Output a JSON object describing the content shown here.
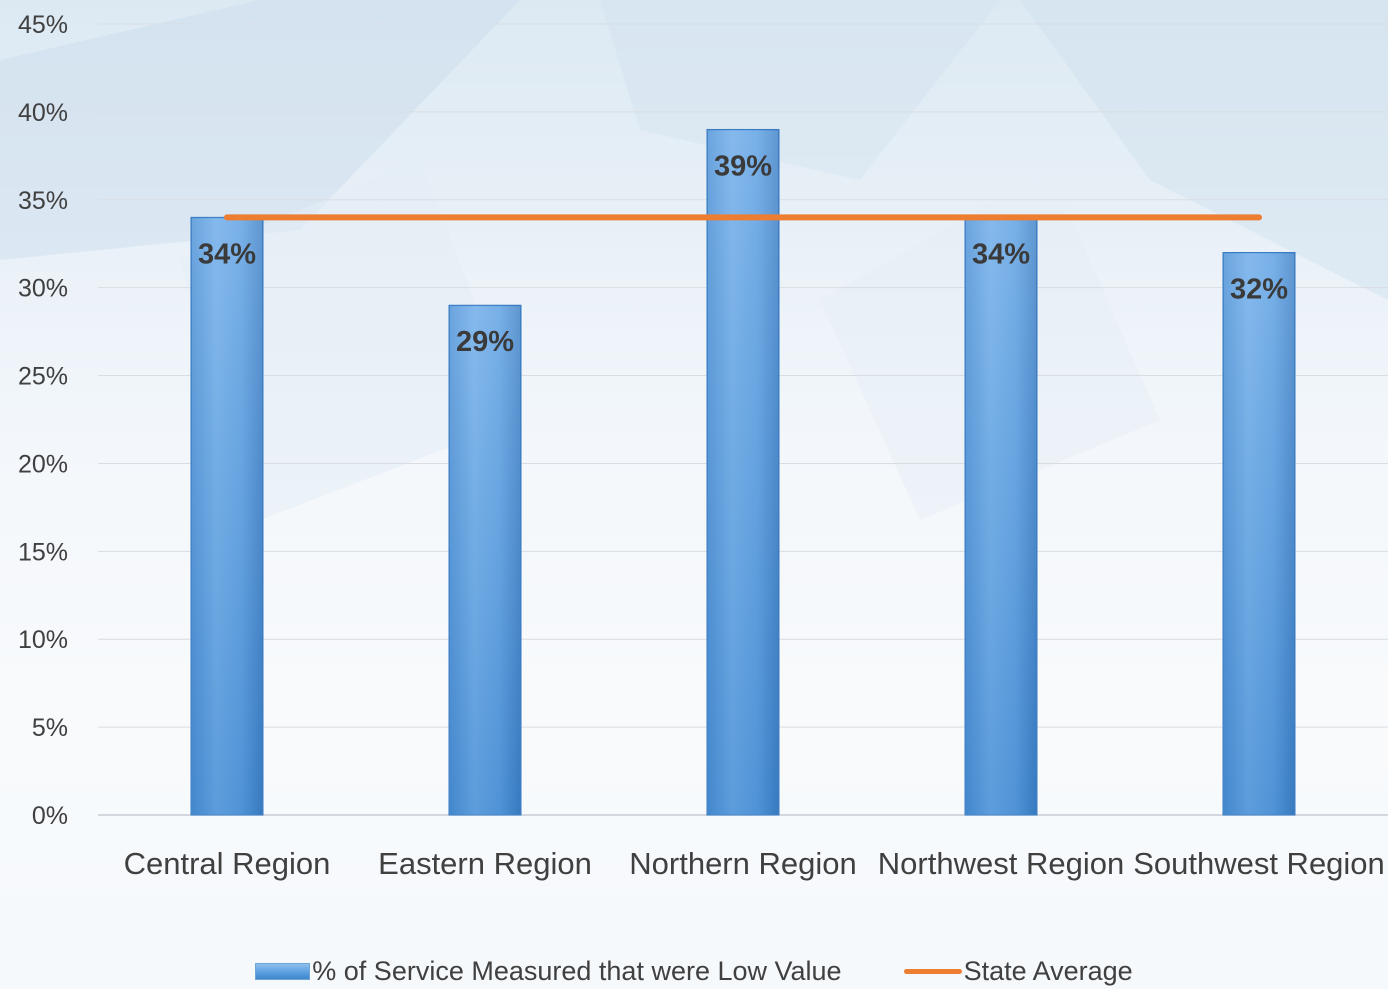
{
  "chart_data": {
    "type": "bar",
    "categories": [
      "Central Region",
      "Eastern Region",
      "Northern Region",
      "Northwest Region",
      "Southwest Region"
    ],
    "series": [
      {
        "name": "% of Service Measured that were Low Value",
        "type": "bar",
        "values": [
          34,
          29,
          39,
          34,
          32
        ],
        "data_labels": [
          "34%",
          "29%",
          "39%",
          "34%",
          "32%"
        ],
        "color": "#5b9bd5"
      },
      {
        "name": "State Average",
        "type": "line",
        "values": [
          34,
          34,
          34,
          34,
          34
        ],
        "color": "#ed7d31"
      }
    ],
    "y_ticks": [
      "0%",
      "5%",
      "10%",
      "15%",
      "20%",
      "25%",
      "30%",
      "35%",
      "40%",
      "45%"
    ],
    "ylim": [
      0,
      45
    ],
    "grid": true,
    "legend_position": "bottom"
  }
}
